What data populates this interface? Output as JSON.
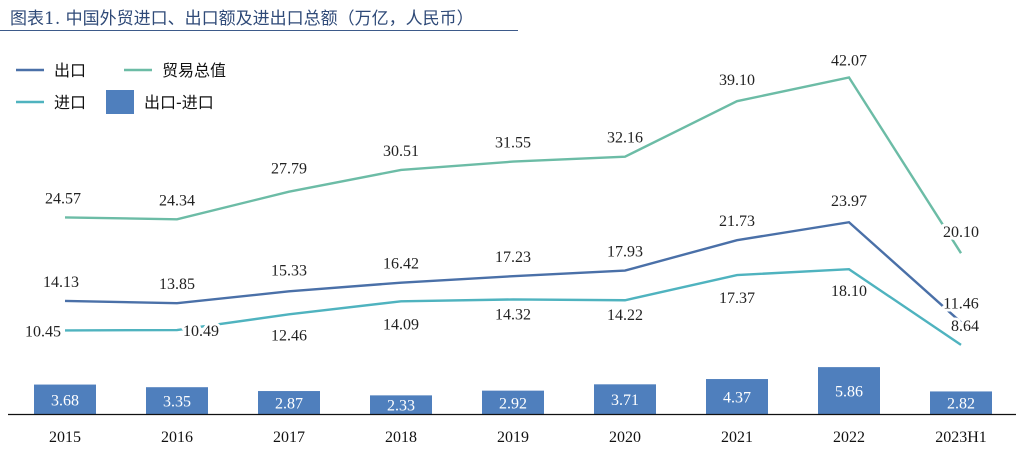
{
  "chart_data": {
    "type": "line",
    "title": "图表1. 中国外贸进口、出口额及进出口总额（万亿，人民币）",
    "categories": [
      "2015",
      "2016",
      "2017",
      "2018",
      "2019",
      "2020",
      "2021",
      "2022",
      "2023H1"
    ],
    "series": [
      {
        "name": "出口",
        "type": "line",
        "color": "#4a70a8",
        "values": [
          14.13,
          13.85,
          15.33,
          16.42,
          17.23,
          17.93,
          21.73,
          23.97,
          11.46
        ]
      },
      {
        "name": "贸易总值",
        "type": "line",
        "color": "#6cbca6",
        "values": [
          24.57,
          24.34,
          27.79,
          30.51,
          31.55,
          32.16,
          39.1,
          42.07,
          20.1
        ]
      },
      {
        "name": "进口",
        "type": "line",
        "color": "#4fb3bf",
        "values": [
          10.45,
          10.49,
          12.46,
          14.09,
          14.32,
          14.22,
          17.37,
          18.1,
          8.64
        ]
      },
      {
        "name": "出口-进口",
        "type": "bar",
        "color": "#4f7fbd",
        "values": [
          3.68,
          3.35,
          2.87,
          2.33,
          2.92,
          3.71,
          4.37,
          5.86,
          2.82
        ]
      }
    ],
    "legend_position": "top-left",
    "grid": false,
    "ylim": [
      0,
      45
    ]
  }
}
